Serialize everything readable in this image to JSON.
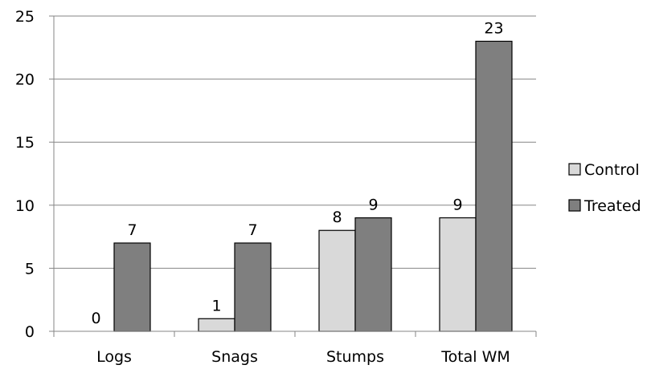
{
  "chart_data": {
    "type": "bar",
    "categories": [
      "Logs",
      "Snags",
      "Stumps",
      "Total WM"
    ],
    "series": [
      {
        "name": "Control",
        "values": [
          0,
          1,
          8,
          9
        ],
        "color": "#d9d9d9"
      },
      {
        "name": "Treated",
        "values": [
          7,
          7,
          9,
          23
        ],
        "color": "#7f7f7f"
      }
    ],
    "ylim": [
      0,
      25
    ],
    "yticks": [
      0,
      5,
      10,
      15,
      20,
      25
    ],
    "grid": true,
    "legend": "right",
    "data_labels": true
  }
}
